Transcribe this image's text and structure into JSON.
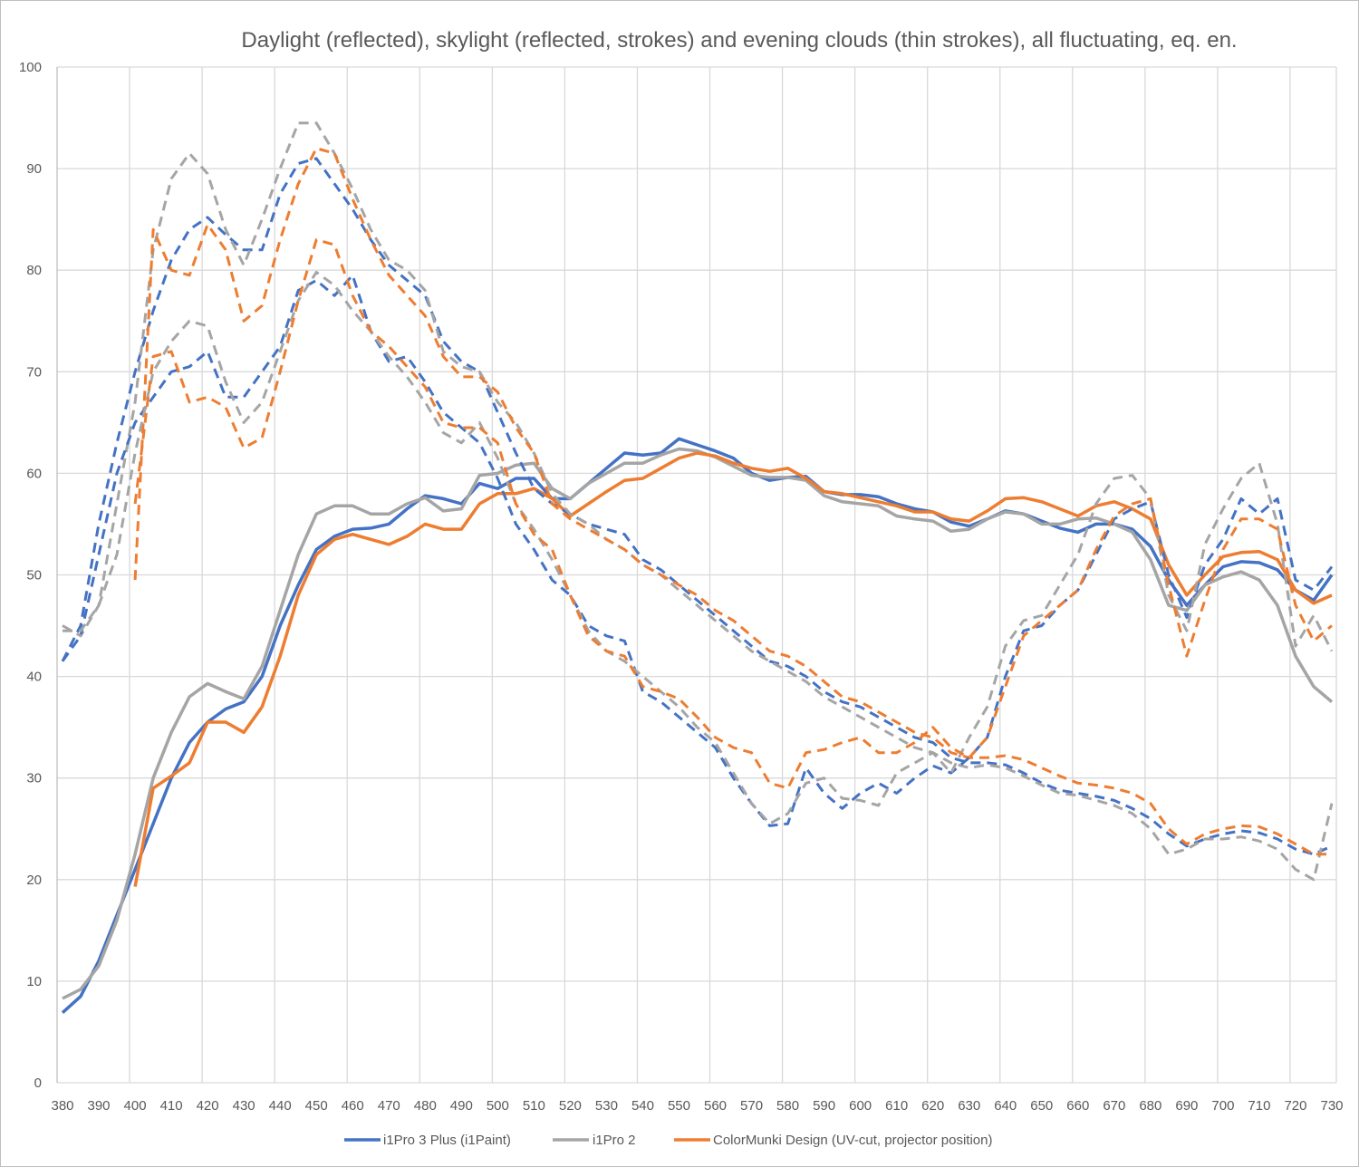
{
  "chart_data": {
    "type": "line",
    "title": "Daylight (reflected), skylight (reflected, strokes) and evening clouds (thin strokes), all fluctuating, eq. en.",
    "xlabel": "",
    "ylabel": "",
    "xlim": [
      380,
      730
    ],
    "ylim": [
      0,
      100
    ],
    "x_ticks": [
      380,
      390,
      400,
      410,
      420,
      430,
      440,
      450,
      460,
      470,
      480,
      490,
      500,
      510,
      520,
      530,
      540,
      550,
      560,
      570,
      580,
      590,
      600,
      610,
      620,
      630,
      640,
      650,
      660,
      670,
      680,
      690,
      700,
      710,
      720,
      730
    ],
    "y_ticks": [
      0,
      10,
      20,
      30,
      40,
      50,
      60,
      70,
      80,
      90,
      100
    ],
    "grid": true,
    "legend_position": "bottom",
    "legend": [
      {
        "name": "i1Pro 3 Plus (i1Paint)",
        "color": "#4472c4"
      },
      {
        "name": "i1Pro 2",
        "color": "#a5a5a5"
      },
      {
        "name": "ColorMunki Design (UV-cut, projector position)",
        "color": "#ed7d31"
      }
    ],
    "x": [
      380,
      385,
      390,
      395,
      400,
      405,
      410,
      415,
      420,
      425,
      430,
      435,
      440,
      445,
      450,
      455,
      460,
      465,
      470,
      475,
      480,
      485,
      490,
      495,
      500,
      505,
      510,
      515,
      520,
      525,
      530,
      535,
      540,
      545,
      550,
      555,
      560,
      565,
      570,
      575,
      580,
      585,
      590,
      595,
      600,
      605,
      610,
      615,
      620,
      625,
      630,
      635,
      640,
      645,
      650,
      655,
      660,
      665,
      670,
      675,
      680,
      685,
      690,
      695,
      700,
      705,
      710,
      715,
      720,
      725,
      730
    ],
    "series": [
      {
        "name": "i1Pro 3 Plus (i1Paint)",
        "style": "solid",
        "color": "#4472c4",
        "values": [
          6.9,
          8.5,
          12,
          16.5,
          21,
          25.5,
          30,
          33.5,
          35.5,
          36.8,
          37.5,
          40,
          45,
          49,
          52.5,
          53.8,
          54.5,
          54.6,
          55,
          56.5,
          57.8,
          57.5,
          57,
          59,
          58.5,
          59.5,
          59.5,
          57.5,
          57.5,
          59,
          60.5,
          62,
          61.8,
          62,
          63.4,
          62.8,
          62.2,
          61.5,
          60,
          59.3,
          59.6,
          59.7,
          58.2,
          57.9,
          57.9,
          57.7,
          57,
          56.5,
          56.2,
          55.2,
          54.8,
          55.5,
          56.3,
          56,
          55.3,
          54.6,
          54.2,
          55,
          55,
          54.5,
          52.8,
          49.5,
          47,
          49,
          50.8,
          51.3,
          51.2,
          50.5,
          48.5,
          47.5,
          50
        ]
      },
      {
        "name": "i1Pro 2",
        "style": "solid",
        "color": "#a5a5a5",
        "values": [
          8.3,
          9.2,
          11.5,
          16,
          22.5,
          30,
          34.5,
          38,
          39.3,
          38.5,
          37.8,
          41,
          46.5,
          52,
          56,
          56.8,
          56.8,
          56,
          56,
          57,
          57.6,
          56.3,
          56.5,
          59.8,
          60,
          60.8,
          61,
          58.5,
          57.5,
          59,
          60,
          61,
          61,
          61.8,
          62.4,
          62.2,
          61.6,
          60.7,
          59.8,
          59.6,
          59.6,
          59.3,
          57.8,
          57.2,
          57,
          56.8,
          55.8,
          55.5,
          55.3,
          54.3,
          54.5,
          55.5,
          56.2,
          56,
          55,
          55,
          55.5,
          55.6,
          55,
          54.2,
          51.5,
          47,
          46.5,
          49,
          49.8,
          50.3,
          49.5,
          47,
          42,
          39,
          37.5
        ]
      },
      {
        "name": "ColorMunki Design (UV-cut, projector position)",
        "style": "solid",
        "color": "#ed7d31",
        "values": [
          null,
          null,
          null,
          null,
          19.3,
          29,
          30.2,
          31.5,
          35.5,
          35.5,
          34.5,
          37,
          42,
          48,
          52,
          53.5,
          54,
          53.5,
          53,
          53.8,
          55,
          54.5,
          54.5,
          57,
          58,
          58,
          58.5,
          57.5,
          55.8,
          57,
          58.2,
          59.3,
          59.5,
          60.5,
          61.5,
          62,
          61.7,
          61,
          60.5,
          60.2,
          60.5,
          59.5,
          58.2,
          58,
          57.6,
          57.2,
          56.8,
          56.2,
          56.2,
          55.5,
          55.3,
          56.3,
          57.5,
          57.6,
          57.2,
          56.5,
          55.8,
          56.8,
          57.2,
          56.5,
          55.5,
          51,
          48,
          50,
          51.8,
          52.2,
          52.3,
          51.5,
          48.5,
          47.2,
          48
        ]
      },
      {
        "name": "i1Pro 3 Plus (i1Paint)",
        "style": "dashed",
        "color": "#4472c4",
        "values": [
          41.5,
          45,
          55,
          63,
          70,
          76,
          81,
          84,
          85.2,
          83.5,
          82,
          82,
          87.5,
          90.5,
          91,
          88.5,
          86,
          83,
          80.5,
          79,
          77.5,
          73,
          71,
          70,
          66,
          62,
          58.5,
          57,
          56,
          55,
          54.5,
          54,
          51.5,
          50.5,
          49,
          47.5,
          46,
          44.5,
          43,
          41.5,
          41,
          40,
          38.5,
          37.5,
          37,
          36,
          35,
          34,
          33.5,
          32,
          31.5,
          31.5,
          31.3,
          30.5,
          29.5,
          28.8,
          28.5,
          28.2,
          27.8,
          27,
          26,
          24.5,
          23.3,
          24,
          24.5,
          24.8,
          24.6,
          24,
          23,
          22.5,
          23.3
        ]
      },
      {
        "name": "i1Pro 2",
        "style": "dashed",
        "color": "#a5a5a5",
        "values": [
          45,
          44,
          47,
          57,
          67,
          82,
          89,
          91.5,
          89.5,
          84,
          80.5,
          85,
          90,
          94.5,
          94.5,
          91.5,
          88,
          84,
          81,
          80,
          78,
          72,
          70.5,
          70,
          67,
          65,
          62,
          58,
          56,
          55,
          53.5,
          52.5,
          51,
          50,
          48.5,
          47,
          45.5,
          44,
          42.5,
          41.5,
          40.5,
          39.5,
          38,
          37,
          36,
          35,
          34,
          33,
          32.5,
          31.5,
          31,
          31.3,
          31,
          30.2,
          29.3,
          28.5,
          28.3,
          27.8,
          27.3,
          26.5,
          25,
          22.5,
          23,
          24,
          24,
          24.2,
          23.8,
          23,
          21,
          20,
          27.5
        ]
      },
      {
        "name": "ColorMunki Design (UV-cut, projector position)",
        "style": "dashed",
        "color": "#ed7d31",
        "values": [
          null,
          null,
          null,
          null,
          49.5,
          84,
          80,
          79.5,
          84.5,
          82,
          75,
          76.5,
          83,
          88.5,
          92,
          91.5,
          87,
          83,
          79.5,
          77.5,
          75.5,
          71.5,
          69.5,
          69.5,
          68,
          64.5,
          62,
          57,
          55.5,
          54.5,
          53.5,
          52.5,
          51,
          50,
          49,
          48,
          46.5,
          45.5,
          44,
          42.5,
          42,
          41,
          39.5,
          38,
          37.5,
          36.5,
          35.5,
          34.5,
          34,
          32.5,
          32,
          32,
          32.2,
          31.8,
          31,
          30.2,
          29.5,
          29.3,
          29,
          28.5,
          27.5,
          25,
          23.5,
          24.5,
          25,
          25.3,
          25.2,
          24.5,
          23.5,
          22.5,
          22.5
        ]
      },
      {
        "name": "i1Pro 3 Plus (i1Paint)",
        "style": "dashed-thin",
        "color": "#4472c4",
        "values": [
          41.5,
          44,
          52,
          60,
          65,
          67.5,
          70,
          70.5,
          72,
          67.5,
          67.5,
          70,
          72.5,
          78,
          79,
          77.5,
          79.5,
          74,
          71,
          71.5,
          69,
          66,
          64.5,
          63,
          59.5,
          55,
          52.5,
          49.5,
          48,
          45,
          44,
          43.5,
          38.5,
          37.5,
          36,
          34.5,
          33,
          30,
          27.5,
          25.3,
          25.5,
          31,
          28.5,
          27,
          28.5,
          29.5,
          28.5,
          30,
          31.2,
          30.5,
          32,
          34,
          40,
          44.5,
          45,
          47,
          48.5,
          52,
          55.5,
          56.5,
          57.2,
          50,
          45.8,
          51,
          53.5,
          57.5,
          56,
          57.5,
          49.5,
          48.5,
          50.8
        ]
      },
      {
        "name": "i1Pro 2",
        "style": "dashed-thin",
        "color": "#a5a5a5",
        "values": [
          44.5,
          44.5,
          47,
          52,
          62,
          70,
          73,
          75,
          74.5,
          69,
          65,
          67,
          72,
          77,
          79.8,
          78.5,
          76,
          74,
          71.5,
          69.5,
          67,
          64,
          63,
          65,
          61.5,
          57,
          54.5,
          51.5,
          48,
          44.5,
          42.5,
          41.5,
          40,
          38.5,
          37,
          35,
          33.5,
          30.5,
          27.5,
          25.5,
          26.5,
          29.5,
          30,
          28,
          27.8,
          27.3,
          30.5,
          31.5,
          32.5,
          30.5,
          34,
          37,
          43,
          45.5,
          46,
          49,
          52,
          57,
          59.5,
          59.8,
          57.5,
          48,
          44.5,
          53,
          56.5,
          59.5,
          61,
          55,
          43,
          46,
          42.5
        ]
      },
      {
        "name": "ColorMunki Design (UV-cut, projector position)",
        "style": "dashed-thin",
        "color": "#ed7d31",
        "values": [
          null,
          null,
          null,
          null,
          57,
          71.5,
          72,
          67,
          67.5,
          66.5,
          62.5,
          63.5,
          70,
          77,
          83,
          82.5,
          77.5,
          74,
          72.5,
          70.5,
          68.5,
          65,
          64.5,
          64.5,
          63,
          57,
          54,
          52.5,
          48,
          44,
          42.5,
          42,
          39,
          38.5,
          37.8,
          36,
          34,
          33,
          32.5,
          29.5,
          29,
          32.5,
          32.8,
          33.5,
          34,
          32.5,
          32.5,
          33.5,
          35,
          33,
          32,
          34,
          39,
          44,
          45.5,
          47,
          48.5,
          52.5,
          55.8,
          57,
          57.5,
          49,
          42,
          47.5,
          52.5,
          55.5,
          55.5,
          54.5,
          47,
          43.5,
          45
        ]
      }
    ]
  }
}
